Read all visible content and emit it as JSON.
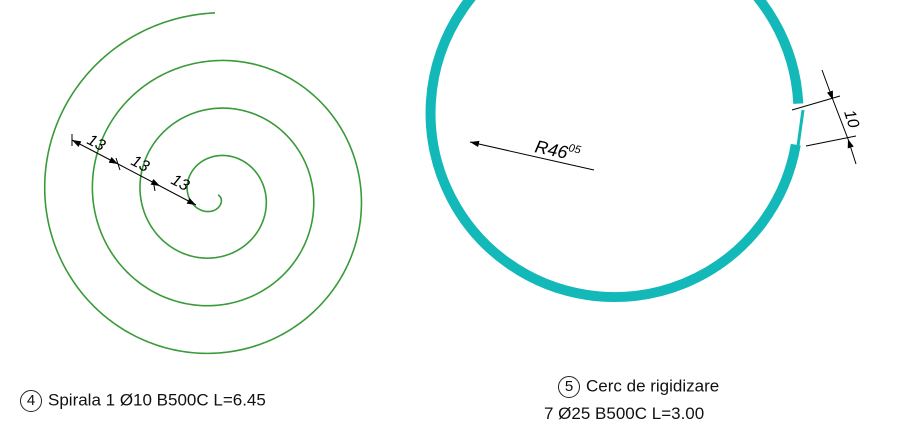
{
  "spiral": {
    "color": "#3a9a3a",
    "dimensions": [
      "13",
      "13",
      "13"
    ],
    "caption": {
      "number": "4",
      "text": "Spirala 1 Ø10 B500C L=6.45"
    }
  },
  "ring": {
    "color": "#13b8b8",
    "radius_label": "R46",
    "radius_sup": "05",
    "gap_label": "10",
    "caption": {
      "number": "5",
      "line1": "Cerc de rigidizare",
      "line2": "7 Ø25 B500C L=3.00"
    }
  }
}
